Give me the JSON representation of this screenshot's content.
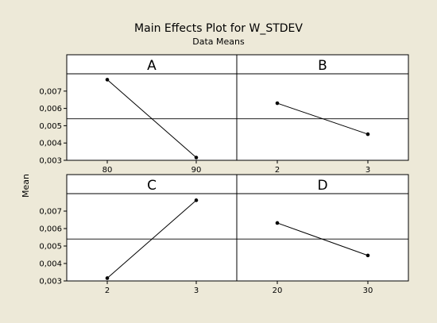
{
  "chart_data": {
    "type": "line",
    "title": "Main Effects Plot for W_STDEV",
    "subtitle": "Data Means",
    "ylabel": "Mean",
    "ylim": [
      0.003,
      0.008
    ],
    "yticks": [
      "0,003",
      "0,004",
      "0,005",
      "0,006",
      "0,007"
    ],
    "ytick_values": [
      0.003,
      0.004,
      0.005,
      0.006,
      0.007
    ],
    "overall_mean": 0.0054,
    "panels": [
      {
        "factor": "A",
        "levels": [
          "80",
          "90"
        ],
        "values": [
          0.00766,
          0.00316
        ]
      },
      {
        "factor": "B",
        "levels": [
          "2",
          "3"
        ],
        "values": [
          0.0063,
          0.00451
        ]
      },
      {
        "factor": "C",
        "levels": [
          "2",
          "3"
        ],
        "values": [
          0.00316,
          0.00762
        ]
      },
      {
        "factor": "D",
        "levels": [
          "20",
          "30"
        ],
        "values": [
          0.00632,
          0.00446
        ]
      }
    ]
  }
}
